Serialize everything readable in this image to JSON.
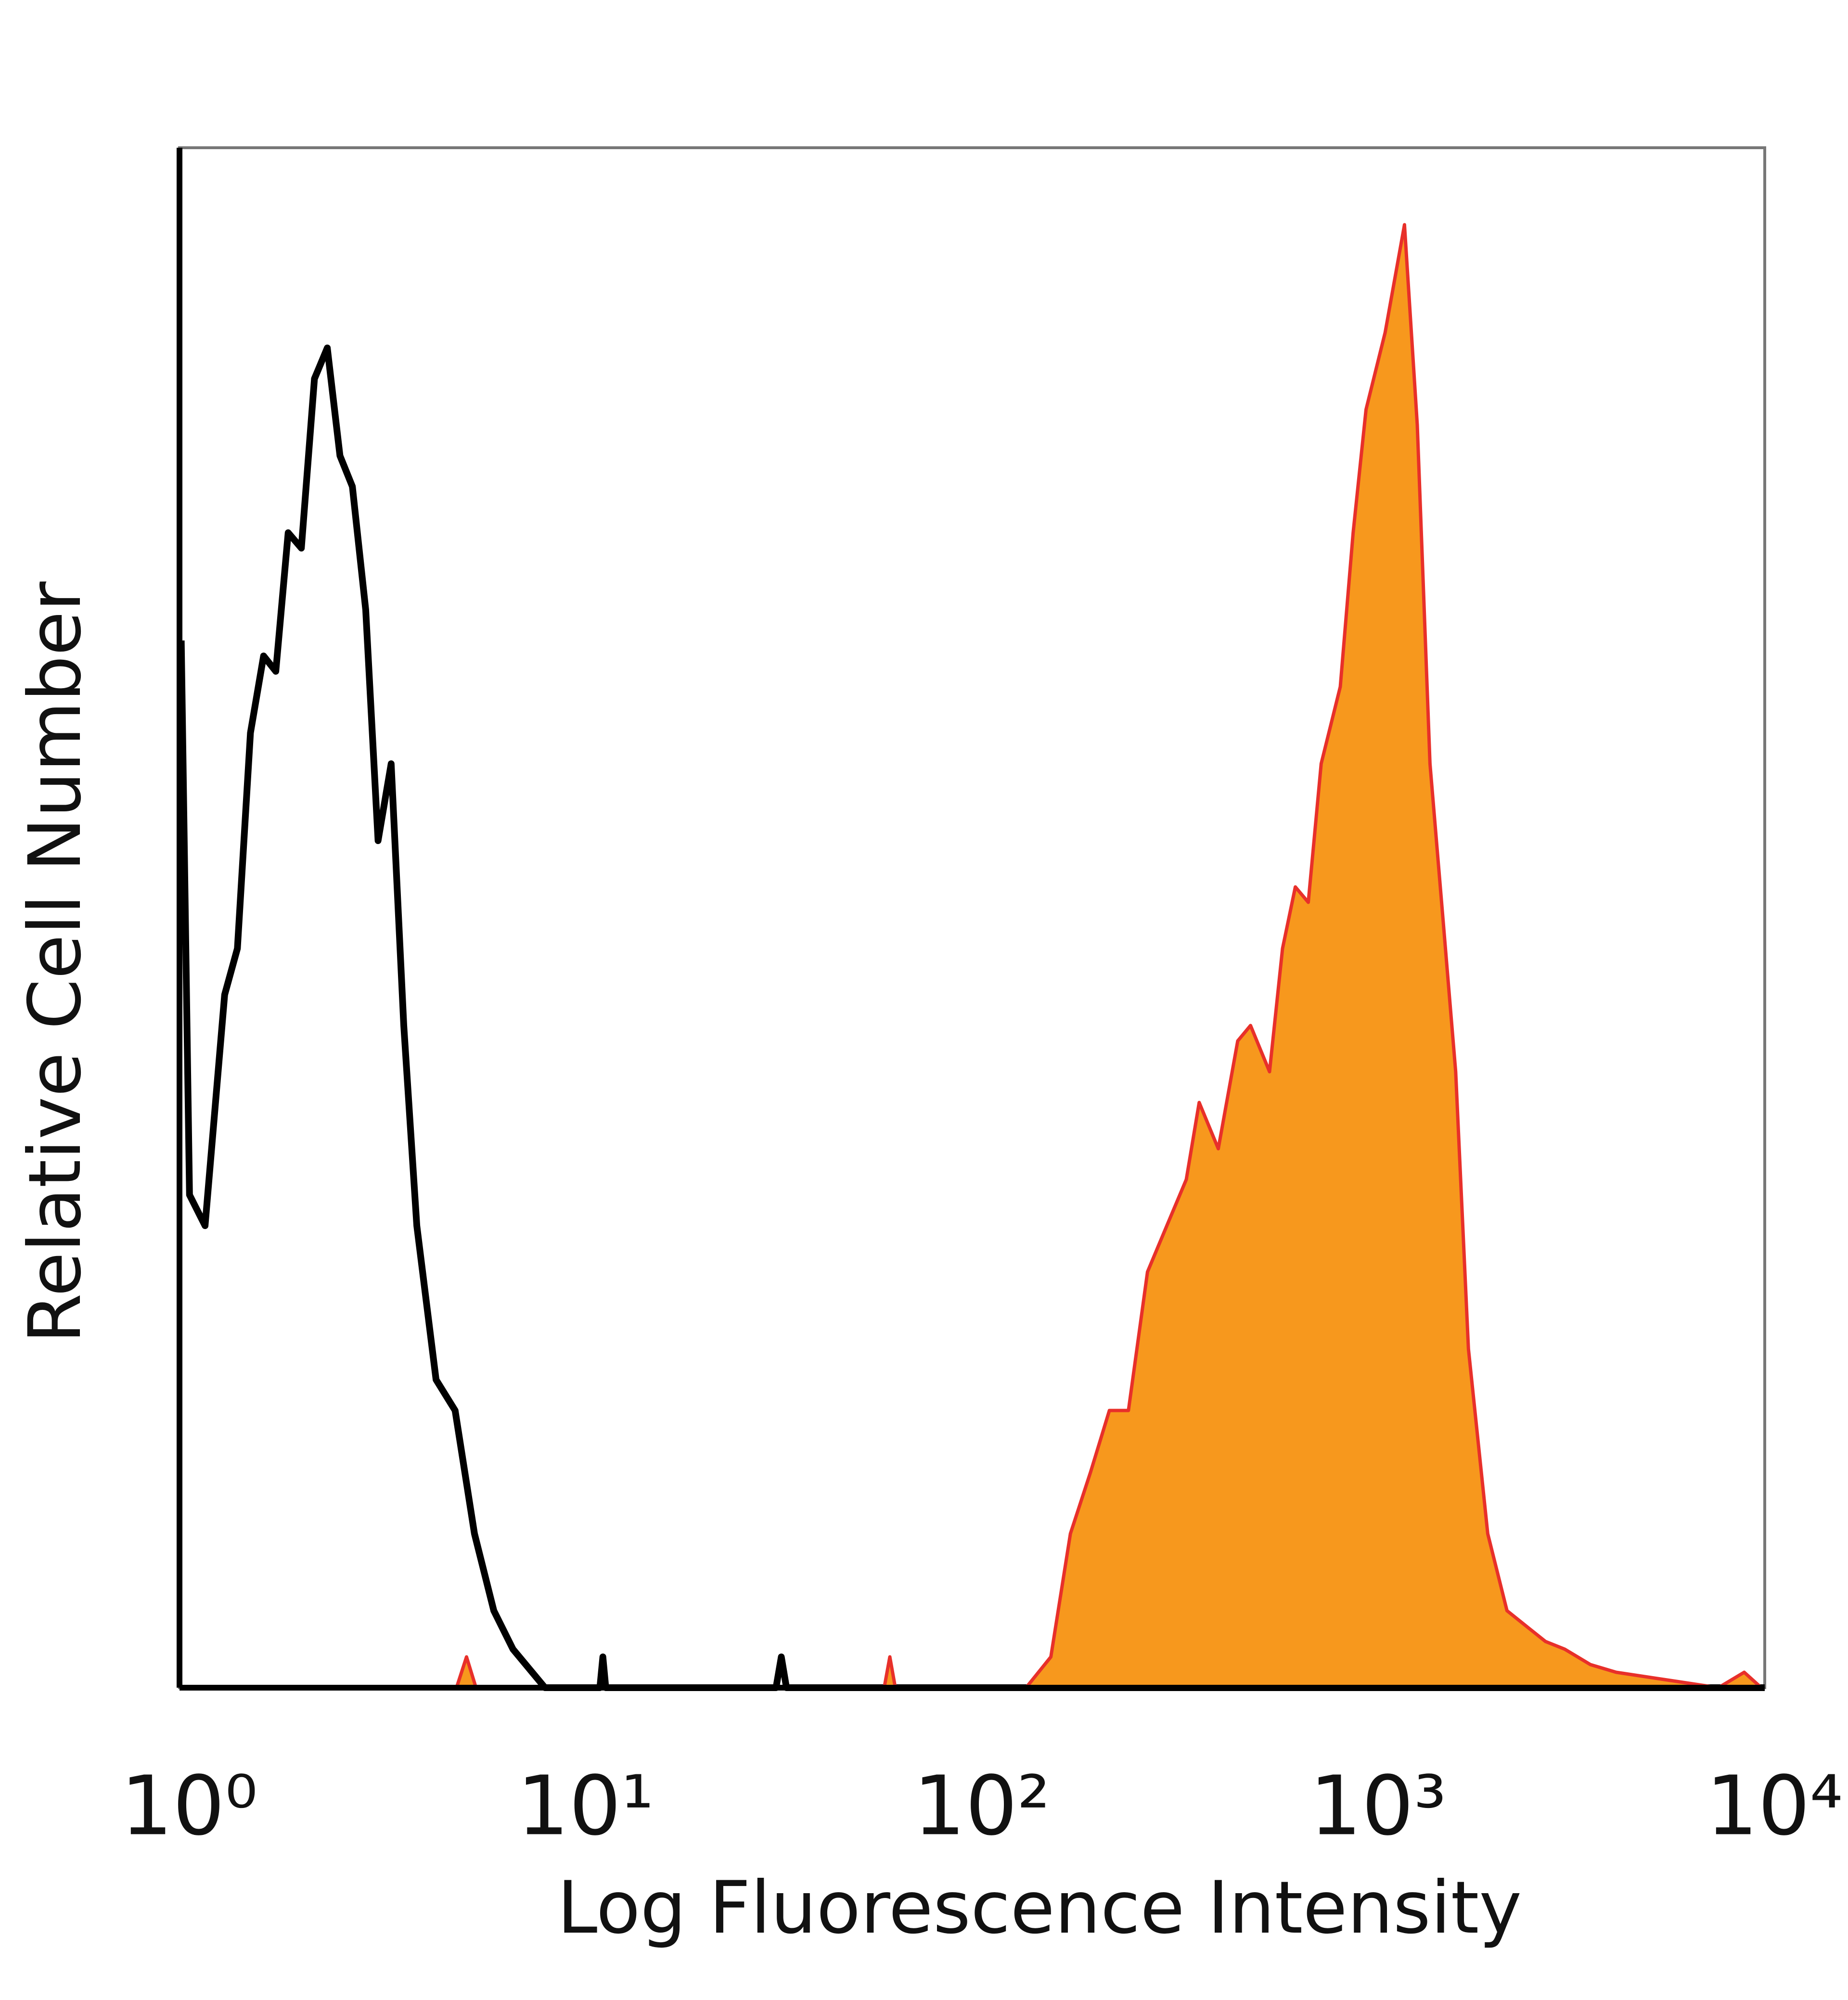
{
  "chart_data": {
    "type": "histogram-overlay",
    "x_label": "Log Fluorescence Intensity",
    "y_label": "Relative Cell Number",
    "xscale": "log",
    "xlim": [
      1,
      10000
    ],
    "xticks": [
      {
        "value": 1,
        "label": "10⁰"
      },
      {
        "value": 10,
        "label": "10¹"
      },
      {
        "value": 100,
        "label": "10²"
      },
      {
        "value": 1000,
        "label": "10³"
      },
      {
        "value": 10000,
        "label": "10⁴"
      }
    ],
    "ylim": [
      0,
      100
    ],
    "series": [
      {
        "color": "#000000",
        "fill": "none",
        "x": [
          1.01,
          1.06,
          1.16,
          1.3,
          1.4,
          1.51,
          1.63,
          1.75,
          1.88,
          2.03,
          2.19,
          2.36,
          2.54,
          2.73,
          2.95,
          3.17,
          3.42,
          3.68,
          3.97,
          4.44,
          4.96,
          5.55,
          6.21,
          6.94,
          7.76,
          8.36,
          11.5,
          11.7,
          11.9,
          32,
          33,
          34,
          10000
        ],
        "values": [
          68,
          32,
          30,
          45,
          48,
          62,
          67,
          66,
          75,
          74,
          85,
          87,
          80,
          78,
          70,
          55,
          60,
          43,
          30,
          20,
          18,
          10,
          5,
          2.5,
          1,
          0,
          0,
          2,
          0,
          0,
          2,
          0,
          0
        ]
      },
      {
        "color": "#e8302a",
        "fill": "#f7981d",
        "x": [
          1,
          5,
          5.3,
          5.6,
          60,
          62,
          64,
          136.8,
          158,
          177,
          199,
          222,
          248,
          277,
          310,
          347,
          374,
          418,
          468,
          504,
          563,
          607,
          654,
          705,
          760,
          849,
          915,
          986,
          1102,
          1233,
          1328,
          1430,
          1541,
          1660,
          1788,
          2000,
          2237,
          2501,
          2797,
          3128,
          3631,
          4218,
          5675,
          7640,
          8875,
          9800
        ],
        "values": [
          0,
          0,
          2,
          0,
          0,
          2,
          0,
          0,
          2,
          10,
          14,
          18,
          18,
          27,
          30,
          33,
          38,
          35,
          42,
          43,
          40,
          48,
          52,
          51,
          60,
          65,
          75,
          83,
          88,
          95,
          82,
          60,
          50,
          40,
          22,
          10,
          5,
          4,
          3,
          2.5,
          1.5,
          1,
          0.5,
          0,
          1,
          0
        ]
      }
    ]
  }
}
